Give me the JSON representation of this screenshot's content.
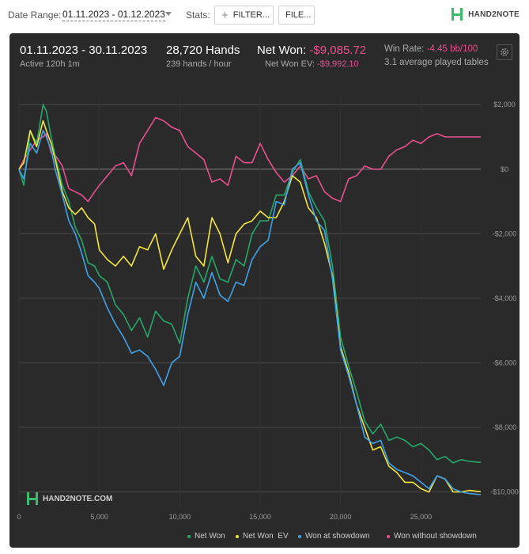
{
  "toolbar": {
    "date_range_label": "Date Range:",
    "date_range_value": "01.11.2023 - 01.12.2023",
    "stats_label": "Stats:",
    "filter_button": "FILTER...",
    "file_button": "FILE...",
    "logo_text": "HAND2NOTE"
  },
  "summary": {
    "period": "01.11.2023 - 30.11.2023",
    "active": "Active 120h 1m",
    "hands": "28,720 Hands",
    "hands_per_hour": "239 hands / hour",
    "net_won_label": "Net Won:",
    "net_won_value": "-$9,085.72",
    "net_won_ev_label": "Net Won  EV:",
    "net_won_ev_value": "-$9,992.10",
    "win_rate_label": "Win Rate:",
    "win_rate_value": "-4.45 bb/100",
    "tables": "3.1 average played tables"
  },
  "watermark": "HAND2NOTE.COM",
  "colors": {
    "net_won": "#25a86a",
    "net_won_ev": "#f4e53c",
    "won_at_showdown": "#3fa2e8",
    "won_without_showdown": "#e8508e",
    "panel_bg": "#2a2a2a"
  },
  "chart_data": {
    "type": "line",
    "xlim": [
      0,
      28720
    ],
    "ylim": [
      -10500,
      2300
    ],
    "x_ticks": [
      0,
      5000,
      10000,
      15000,
      20000,
      25000
    ],
    "x_tick_labels": [
      "0",
      "5,000",
      "10,000",
      "15,000",
      "20,000",
      "25,000"
    ],
    "y_ticks": [
      2000,
      0,
      -2000,
      -4000,
      -6000,
      -8000,
      -10000
    ],
    "y_tick_labels": [
      "$2,000",
      "$0",
      "-$2,000",
      "-$4,000",
      "-$6,000",
      "-$8,000",
      "-$10,000"
    ],
    "grid": true,
    "legend_position": "bottom-right",
    "series": [
      {
        "name": "Net Won",
        "color": "#25a86a",
        "x": [
          0,
          300,
          700,
          1100,
          1500,
          1700,
          2000,
          2300,
          2700,
          3100,
          3500,
          3900,
          4300,
          4700,
          5000,
          5500,
          6000,
          6500,
          7000,
          7500,
          8000,
          8500,
          9000,
          9500,
          10000,
          10500,
          11000,
          11500,
          12000,
          12500,
          13000,
          13500,
          14000,
          14500,
          15000,
          15500,
          16000,
          16500,
          17000,
          17500,
          18000,
          18500,
          19000,
          19500,
          20000,
          20500,
          21000,
          21500,
          22000,
          22500,
          23000,
          23500,
          24000,
          24500,
          25000,
          25500,
          26000,
          26500,
          27000,
          27500,
          28000,
          28720
        ],
        "y": [
          0,
          -500,
          1200,
          800,
          2000,
          1800,
          1000,
          300,
          -500,
          -1000,
          -1800,
          -2200,
          -2900,
          -3000,
          -3300,
          -3500,
          -4200,
          -4500,
          -5000,
          -4600,
          -5200,
          -4400,
          -4700,
          -4800,
          -5400,
          -4000,
          -3000,
          -3500,
          -2700,
          -3400,
          -3500,
          -2800,
          -3000,
          -2000,
          -1600,
          -1600,
          -800,
          -800,
          -100,
          300,
          -700,
          -1200,
          -1600,
          -3000,
          -5200,
          -6100,
          -6900,
          -7800,
          -8200,
          -7900,
          -8400,
          -8300,
          -8400,
          -8600,
          -8500,
          -8700,
          -9000,
          -8900,
          -9100,
          -9000,
          -9050,
          -9085
        ]
      },
      {
        "name": "Net Won  EV",
        "color": "#f4e53c",
        "x": [
          0,
          300,
          700,
          1100,
          1500,
          1700,
          2000,
          2300,
          2700,
          3100,
          3500,
          3900,
          4300,
          4700,
          5000,
          5500,
          6000,
          6500,
          7000,
          7500,
          8000,
          8500,
          9000,
          9500,
          10000,
          10500,
          11000,
          11500,
          12000,
          12500,
          13000,
          13500,
          14000,
          14500,
          15000,
          15500,
          16000,
          16500,
          17000,
          17500,
          18000,
          18500,
          19000,
          19500,
          20000,
          20500,
          21000,
          21500,
          22000,
          22500,
          23000,
          23500,
          24000,
          24500,
          25000,
          25500,
          26000,
          26500,
          27000,
          27500,
          28000,
          28720
        ],
        "y": [
          0,
          200,
          1200,
          700,
          1500,
          1200,
          800,
          200,
          -700,
          -1200,
          -1400,
          -1200,
          -1500,
          -1700,
          -2500,
          -2800,
          -3000,
          -2700,
          -3000,
          -2400,
          -2500,
          -2000,
          -3100,
          -2500,
          -2000,
          -1500,
          -2700,
          -3000,
          -1500,
          -2000,
          -2900,
          -2000,
          -1700,
          -1600,
          -1300,
          -1500,
          -1500,
          -1000,
          -200,
          -400,
          -1200,
          -1500,
          -2300,
          -3300,
          -5500,
          -6300,
          -7300,
          -8000,
          -8700,
          -8600,
          -9200,
          -9400,
          -9700,
          -9700,
          -9900,
          -10000,
          -9500,
          -9600,
          -10000,
          -10000,
          -9950,
          -9992
        ]
      },
      {
        "name": "Won at showdown",
        "color": "#3fa2e8",
        "x": [
          0,
          300,
          700,
          1100,
          1500,
          1700,
          2000,
          2300,
          2700,
          3100,
          3500,
          3900,
          4300,
          4700,
          5000,
          5500,
          6000,
          6500,
          7000,
          7500,
          8000,
          8500,
          9000,
          9500,
          10000,
          10500,
          11000,
          11500,
          12000,
          12500,
          13000,
          13500,
          14000,
          14500,
          15000,
          15500,
          16000,
          16500,
          17000,
          17500,
          18000,
          18500,
          19000,
          19500,
          20000,
          20500,
          21000,
          21500,
          22000,
          22500,
          23000,
          23500,
          24000,
          24500,
          25000,
          25500,
          26000,
          26500,
          27000,
          27500,
          28000,
          28720
        ],
        "y": [
          0,
          -300,
          800,
          500,
          1200,
          1000,
          600,
          -100,
          -800,
          -1600,
          -2000,
          -2600,
          -3300,
          -3500,
          -3700,
          -4300,
          -4800,
          -5200,
          -5700,
          -5600,
          -5800,
          -6200,
          -6700,
          -6000,
          -5800,
          -4500,
          -3500,
          -4000,
          -3200,
          -3900,
          -4100,
          -3500,
          -3600,
          -2800,
          -2400,
          -2200,
          -1000,
          -1100,
          0,
          200,
          -800,
          -1600,
          -1900,
          -3400,
          -5600,
          -6400,
          -7300,
          -8300,
          -8500,
          -8400,
          -9100,
          -9300,
          -9400,
          -9500,
          -9700,
          -9900,
          -9500,
          -9600,
          -9900,
          -10000,
          -10050,
          -10080
        ]
      },
      {
        "name": "Won without showdown",
        "color": "#e8508e",
        "x": [
          0,
          300,
          700,
          1100,
          1500,
          1700,
          2000,
          2300,
          2700,
          3100,
          3500,
          3900,
          4300,
          4700,
          5000,
          5500,
          6000,
          6500,
          7000,
          7500,
          8000,
          8500,
          9000,
          9500,
          10000,
          10500,
          11000,
          11500,
          12000,
          12500,
          13000,
          13500,
          14000,
          14500,
          15000,
          15500,
          16000,
          16500,
          17000,
          17500,
          18000,
          18500,
          19000,
          19500,
          20000,
          20500,
          21000,
          21500,
          22000,
          22500,
          23000,
          23500,
          24000,
          24500,
          25000,
          25500,
          26000,
          26500,
          27000,
          27500,
          28000,
          28720
        ],
        "y": [
          0,
          300,
          600,
          900,
          1000,
          1100,
          500,
          400,
          100,
          -600,
          -700,
          -800,
          -1000,
          -700,
          -500,
          -200,
          100,
          200,
          -200,
          800,
          1200,
          1600,
          1500,
          1300,
          1200,
          700,
          500,
          300,
          -400,
          -300,
          -500,
          400,
          200,
          200,
          800,
          300,
          -100,
          -400,
          -200,
          100,
          -300,
          -200,
          -700,
          -900,
          -1000,
          -300,
          -200,
          100,
          0,
          0,
          400,
          600,
          700,
          900,
          800,
          1000,
          1100,
          1000,
          1000,
          1000,
          1000,
          1000
        ]
      }
    ]
  }
}
